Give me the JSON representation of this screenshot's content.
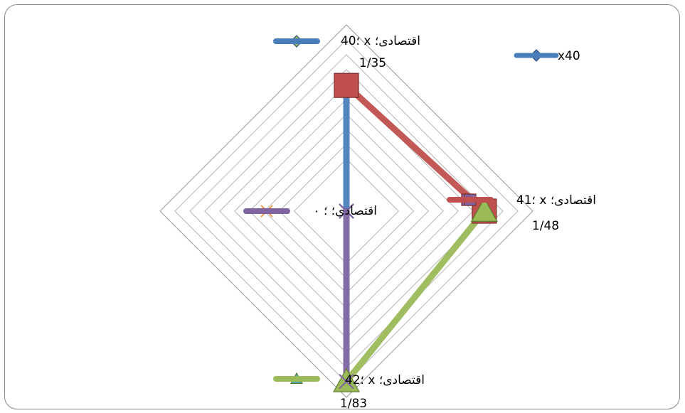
{
  "chart_data": {
    "type": "radar",
    "max": 2,
    "rings": 10,
    "axes": [
      {
        "key": "x40",
        "name": "40؛ x اقتصادی؛",
        "value_label": "1/35",
        "value": 1.35
      },
      {
        "key": "x41",
        "name": "41؛ x اقتصادی؛",
        "value_label": "1/48",
        "value": 1.48
      },
      {
        "key": "x42",
        "name": "42؛ x اقتصادی؛",
        "value_label": "1/83",
        "value": 1.83
      },
      {
        "key": "x43",
        "name": "اقتصادی؛ ؛ ۰",
        "value_label": "",
        "value": 0
      }
    ],
    "series": [
      {
        "name": "x40",
        "color": "#4a7ebb",
        "marker": "diamond",
        "values": [
          1.35,
          0,
          0,
          0
        ]
      },
      {
        "name": "",
        "color": "#c0504d",
        "marker": "square",
        "values": [
          1.35,
          1.48,
          0,
          0
        ]
      },
      {
        "name": "",
        "color": "#9bbb59",
        "marker": "triangle",
        "values": [
          0,
          1.48,
          1.83,
          0
        ]
      },
      {
        "name": "",
        "color": "#8064a2",
        "marker": "x",
        "values": [
          0,
          0,
          1.83,
          0
        ]
      }
    ],
    "legend": {
      "position": "top-right",
      "entries": [
        "x40"
      ]
    },
    "grid": true
  }
}
